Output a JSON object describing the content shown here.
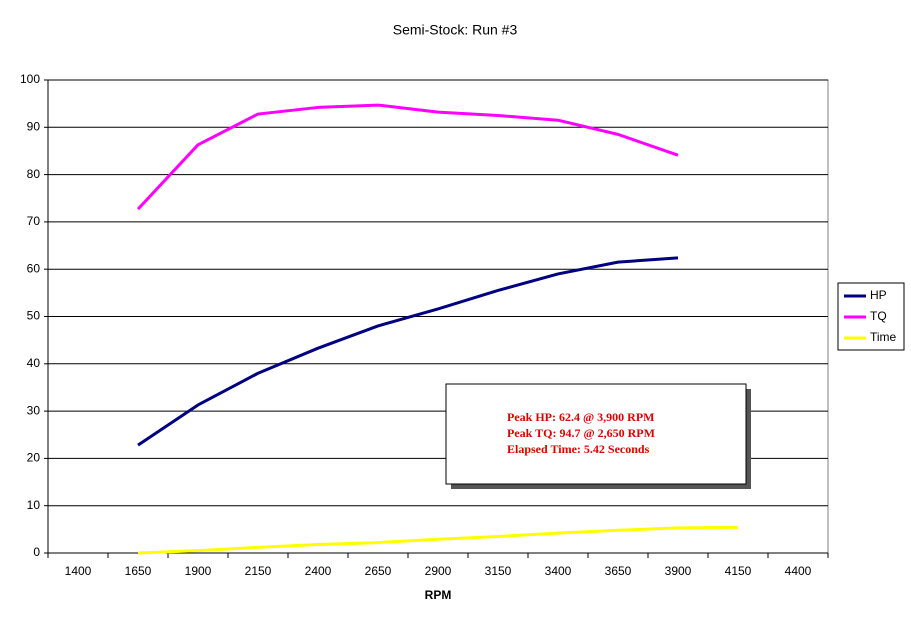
{
  "chart_data": {
    "type": "line",
    "title": "Semi-Stock: Run #3",
    "x_label": "RPM",
    "categories": [
      "1400",
      "1650",
      "1900",
      "2150",
      "2400",
      "2650",
      "2900",
      "3150",
      "3400",
      "3650",
      "3900",
      "4150",
      "4400"
    ],
    "series": [
      {
        "name": "HP",
        "color": "#000080",
        "values": [
          null,
          22.8,
          31.3,
          38.0,
          43.3,
          48.0,
          51.6,
          55.5,
          59.0,
          61.5,
          62.4,
          null,
          null
        ]
      },
      {
        "name": "TQ",
        "color": "#ff00ff",
        "values": [
          null,
          72.7,
          86.3,
          92.8,
          94.2,
          94.7,
          93.2,
          92.5,
          91.5,
          88.5,
          84.1,
          null,
          null
        ]
      },
      {
        "name": "Time",
        "color": "#ffff00",
        "values": [
          null,
          0,
          0.5,
          1.2,
          1.8,
          2.2,
          2.9,
          3.5,
          4.2,
          4.8,
          5.3,
          5.42,
          null
        ]
      }
    ],
    "ylim": [
      0,
      100
    ],
    "yticks": [
      0,
      10,
      20,
      30,
      40,
      50,
      60,
      70,
      80,
      90,
      100
    ],
    "grid": true,
    "legend": "right",
    "annotations": [
      "Peak HP: 62.4 @ 3,900 RPM",
      "Peak TQ: 94.7 @ 2,650 RPM",
      "Elapsed Time: 5.42 Seconds"
    ]
  }
}
